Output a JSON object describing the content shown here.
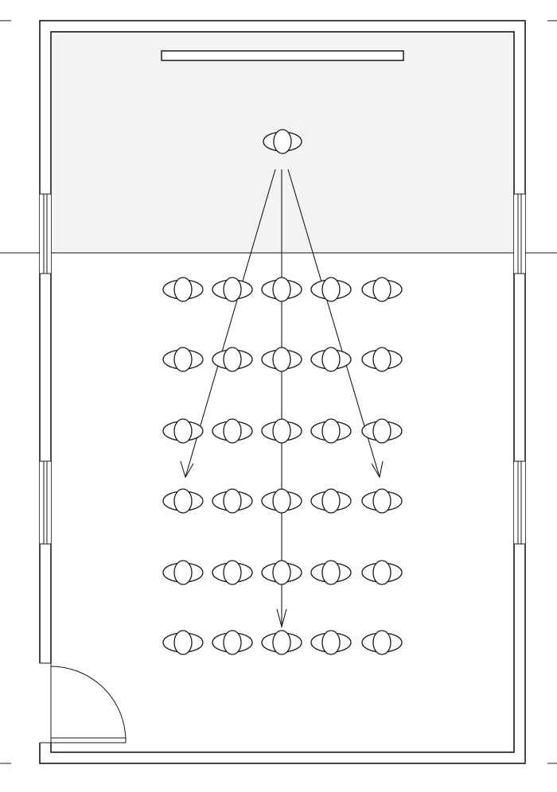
{
  "diagram": {
    "type": "classroom-floor-plan",
    "layout": {
      "rows": 6,
      "columns": 5,
      "presenter_count": 1
    },
    "elements": {
      "board": "board",
      "presenter": "presenter",
      "seats": "audience-seats",
      "sight_lines": 3,
      "door": "door",
      "windows": 4
    }
  }
}
